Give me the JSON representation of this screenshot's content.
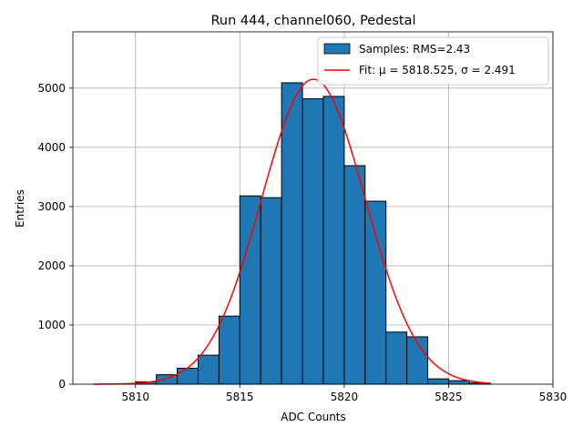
{
  "chart_data": {
    "type": "bar",
    "title": "Run 444, channel060, Pedestal",
    "xlabel": "ADC Counts",
    "ylabel": "Entries",
    "xlim": [
      5807,
      5830
    ],
    "ylim": [
      0,
      5950
    ],
    "xticks": [
      5810,
      5815,
      5820,
      5825,
      5830
    ],
    "yticks": [
      0,
      1000,
      2000,
      3000,
      4000,
      5000
    ],
    "grid": true,
    "legend_position": "top-right",
    "histogram": {
      "name": "Samples: RMS=2.43",
      "color": "#1f77b4",
      "edge_color": "#000000",
      "bin_width": 1,
      "bins": [
        {
          "left": 5808,
          "count": 0
        },
        {
          "left": 5809,
          "count": 0
        },
        {
          "left": 5810,
          "count": 40
        },
        {
          "left": 5811,
          "count": 160
        },
        {
          "left": 5812,
          "count": 270
        },
        {
          "left": 5813,
          "count": 490
        },
        {
          "left": 5814,
          "count": 1150
        },
        {
          "left": 5815,
          "count": 3180
        },
        {
          "left": 5816,
          "count": 3150
        },
        {
          "left": 5817,
          "count": 5090
        },
        {
          "left": 5818,
          "count": 4820
        },
        {
          "left": 5819,
          "count": 4860
        },
        {
          "left": 5820,
          "count": 3690
        },
        {
          "left": 5821,
          "count": 3090
        },
        {
          "left": 5822,
          "count": 880
        },
        {
          "left": 5823,
          "count": 800
        },
        {
          "left": 5824,
          "count": 90
        },
        {
          "left": 5825,
          "count": 60
        },
        {
          "left": 5826,
          "count": 20
        }
      ]
    },
    "fit": {
      "name_prefix": "Fit: ",
      "mu_label": "μ = 5818.525",
      "sigma_label": "σ = 2.491",
      "mu": 5818.525,
      "sigma": 2.491,
      "amplitude": 5150,
      "x_range": [
        5808,
        5827
      ],
      "color": "#ff0000"
    }
  }
}
